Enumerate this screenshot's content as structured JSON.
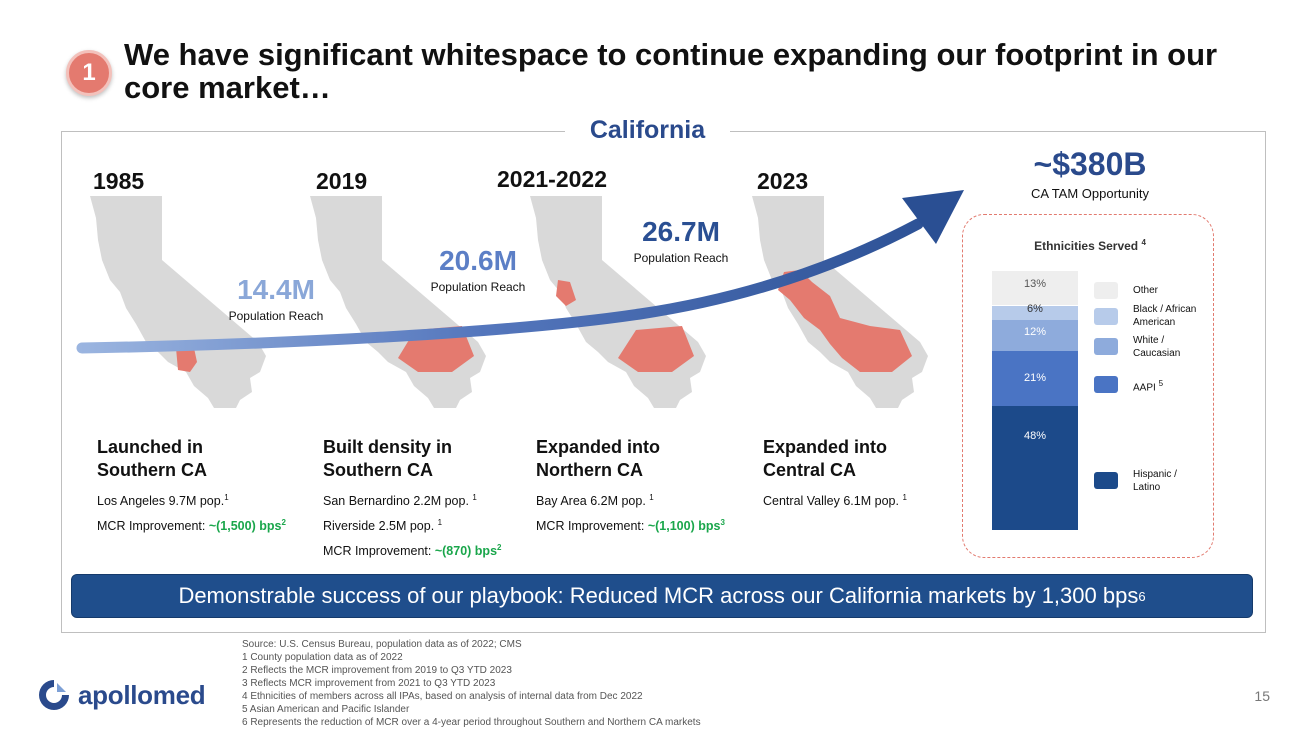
{
  "slide": {
    "badge": "1",
    "title": "We have significant whitespace to continue expanding our footprint in our core market…",
    "region": "California",
    "page_number": "15"
  },
  "timeline": [
    {
      "year": "1985",
      "population": "14.4M",
      "population_label": "Population Reach",
      "headline": [
        "Launched in",
        "Southern CA"
      ],
      "lines": [
        {
          "text": "Los Angeles 9.7M pop.",
          "sup": "1"
        },
        {
          "text": "MCR Improvement: ",
          "highlight": "~(1,500) bps",
          "sup": "2"
        }
      ]
    },
    {
      "year": "2019",
      "population": "20.6M",
      "population_label": "Population Reach",
      "headline": [
        "Built density in",
        "Southern CA"
      ],
      "lines": [
        {
          "text": "San Bernardino 2.2M pop. ",
          "sup": "1"
        },
        {
          "text": "Riverside 2.5M pop. ",
          "sup": "1"
        },
        {
          "text": "MCR Improvement: ",
          "highlight": "~(870) bps",
          "sup": "2"
        }
      ]
    },
    {
      "year": "2021-2022",
      "population": "26.7M",
      "population_label": "Population Reach",
      "headline": [
        "Expanded into",
        "Northern CA"
      ],
      "lines": [
        {
          "text": "Bay Area 6.2M pop. ",
          "sup": "1"
        },
        {
          "text": "MCR Improvement: ",
          "highlight": "~(1,100) bps",
          "sup": "3"
        }
      ]
    },
    {
      "year": "2023",
      "headline": [
        "Expanded into",
        "Central CA"
      ],
      "lines": [
        {
          "text": "Central Valley 6.1M pop. ",
          "sup": "1"
        }
      ]
    }
  ],
  "tam": {
    "value": "~$380B",
    "label": "CA TAM Opportunity"
  },
  "ethnicities": {
    "title": "Ethnicities Served",
    "title_sup": "4",
    "segments": [
      {
        "label": "Other",
        "value": 13,
        "display": "13%",
        "color": "#eeeeee",
        "text_color": "#555555"
      },
      {
        "label": "Black / African American",
        "value": 6,
        "display": "6%",
        "color": "#b7cbea",
        "text_color": "#333333"
      },
      {
        "label": "White / Caucasian",
        "value": 12,
        "display": "12%",
        "color": "#8eabdc",
        "text_color": "#ffffff"
      },
      {
        "label": "AAPI",
        "label_sup": "5",
        "value": 21,
        "display": "21%",
        "color": "#4a74c4",
        "text_color": "#ffffff"
      },
      {
        "label": "Hispanic / Latino",
        "value": 48,
        "display": "48%",
        "color": "#1c4a8a",
        "text_color": "#ffffff"
      }
    ]
  },
  "banner": {
    "text": "Demonstrable success of our playbook: Reduced MCR across our California markets by 1,300 bps",
    "sup": "6"
  },
  "footnotes": [
    "Source: U.S. Census Bureau, population data as of 2022; CMS",
    "1 County population data as of 2022",
    "2 Reflects the MCR improvement from 2019 to Q3 YTD 2023",
    "3 Reflects MCR improvement from 2021 to Q3 YTD 2023",
    " 4 Ethnicities of members across all IPAs, based on analysis of internal data from Dec 2022",
    "5 Asian American and Pacific Islander",
    "6 Represents the reduction of MCR over a 4-year period throughout Southern and Northern CA markets"
  ],
  "logo": {
    "text": "apollomed"
  },
  "colors": {
    "navy": "#1f4e8c",
    "title_blue": "#2a4a8c",
    "light_blue": "#7d9ad0",
    "coral": "#e47a6f",
    "green": "#1aa64b",
    "map_gray": "#d9d9d9"
  }
}
